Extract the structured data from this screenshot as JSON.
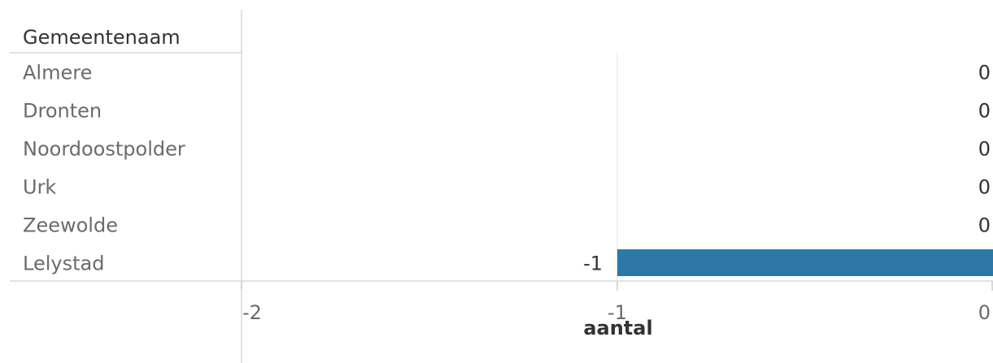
{
  "chart_data": {
    "type": "bar",
    "orientation": "horizontal",
    "row_header": "Gemeentenaam",
    "categories": [
      "Almere",
      "Dronten",
      "Noordoostpolder",
      "Urk",
      "Zeewolde",
      "Lelystad"
    ],
    "values": [
      0,
      0,
      0,
      0,
      0,
      -1
    ],
    "value_labels": [
      "0",
      "0",
      "0",
      "0",
      "0",
      "-1"
    ],
    "xlabel": "aantal",
    "xlim": [
      -2,
      0
    ],
    "xticks": [
      -2,
      -1,
      0
    ],
    "xtick_labels": [
      "-2",
      "-1",
      "0"
    ],
    "grid": true,
    "bar_color": "#2e78a8"
  }
}
